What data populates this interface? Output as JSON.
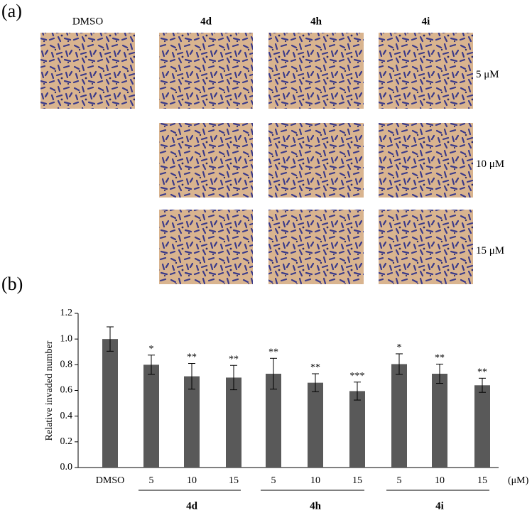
{
  "panel_a": {
    "label": "(a)",
    "columns": [
      "DMSO",
      "4d",
      "4h",
      "4i"
    ],
    "rows": [
      "5 μM",
      "10 μM",
      "15 μM"
    ]
  },
  "chart_data": {
    "type": "bar",
    "panel_label": "(b)",
    "y_label": "Relative invaded number",
    "categories": [
      "DMSO",
      "5",
      "10",
      "15",
      "5",
      "10",
      "15",
      "5",
      "10",
      "15"
    ],
    "values": [
      1.0,
      0.8,
      0.71,
      0.7,
      0.73,
      0.66,
      0.595,
      0.805,
      0.73,
      0.64
    ],
    "errors": [
      0.095,
      0.075,
      0.1,
      0.095,
      0.12,
      0.07,
      0.07,
      0.08,
      0.075,
      0.055
    ],
    "annotations": [
      null,
      "*",
      "**",
      "**",
      "**",
      "**",
      "***",
      "*",
      "**",
      "**"
    ],
    "groups": [
      "4d",
      "4h",
      "4i"
    ],
    "x_unit": "(μM)",
    "color": "#595959",
    "ylim": [
      0,
      1.2
    ],
    "yticks": [
      {
        "value": 0,
        "label": "0.0"
      },
      {
        "value": 0.2,
        "label": "0.2"
      },
      {
        "value": 0.4,
        "label": "0.4"
      },
      {
        "value": 0.6,
        "label": "0.6"
      },
      {
        "value": 0.8,
        "label": "0.8"
      },
      {
        "value": 1,
        "label": "1.0"
      },
      {
        "value": 1.2,
        "label": "1.2"
      }
    ]
  }
}
